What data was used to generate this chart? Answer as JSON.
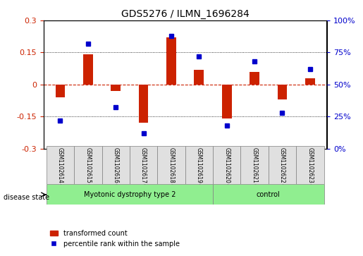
{
  "title": "GDS5276 / ILMN_1696284",
  "samples": [
    "GSM1102614",
    "GSM1102615",
    "GSM1102616",
    "GSM1102617",
    "GSM1102618",
    "GSM1102619",
    "GSM1102620",
    "GSM1102621",
    "GSM1102622",
    "GSM1102623"
  ],
  "red_values": [
    -0.06,
    0.14,
    -0.03,
    -0.18,
    0.22,
    0.07,
    -0.16,
    0.06,
    -0.07,
    0.03
  ],
  "blue_values": [
    22,
    82,
    32,
    12,
    88,
    72,
    18,
    68,
    28,
    62
  ],
  "disease_groups": [
    {
      "label": "Myotonic dystrophy type 2",
      "start": 0,
      "end": 6,
      "color": "#90EE90"
    },
    {
      "label": "control",
      "start": 6,
      "end": 10,
      "color": "#90EE90"
    }
  ],
  "ylim_left": [
    -0.3,
    0.3
  ],
  "ylim_right": [
    0,
    100
  ],
  "yticks_left": [
    -0.3,
    -0.15,
    0.0,
    0.15,
    0.3
  ],
  "yticks_right": [
    0,
    25,
    50,
    75,
    100
  ],
  "ytick_labels_left": [
    "-0.3",
    "-0.15",
    "0",
    "0.15",
    "0.3"
  ],
  "ytick_labels_right": [
    "0%",
    "25%",
    "50%",
    "75%",
    "100%"
  ],
  "hlines": [
    0.15,
    -0.15,
    0.0
  ],
  "red_color": "#cc2200",
  "blue_color": "#0000cc",
  "legend_red": "transformed count",
  "legend_blue": "percentile rank within the sample",
  "disease_state_label": "disease state",
  "bar_width": 0.35
}
